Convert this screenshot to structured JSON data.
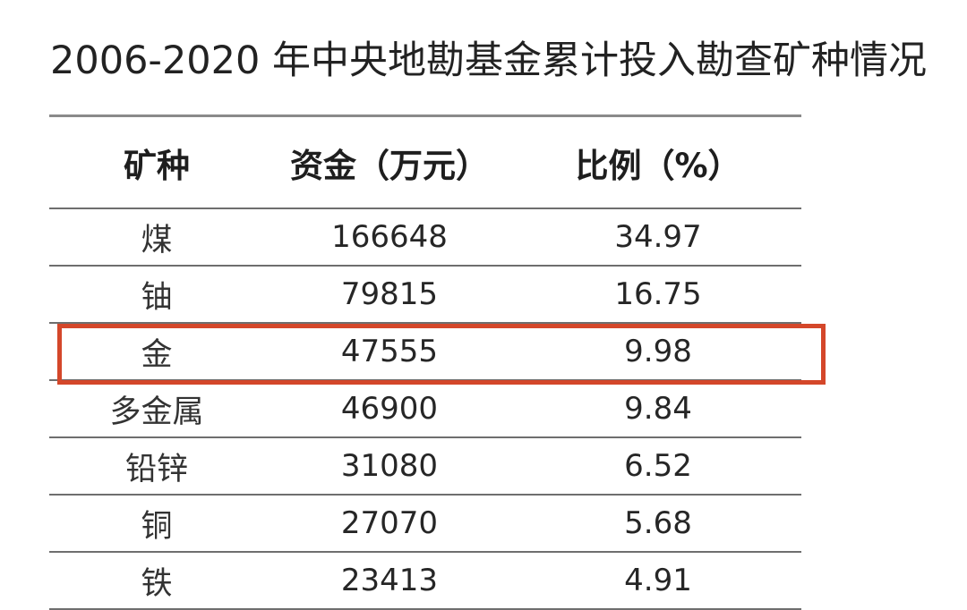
{
  "title": "2006-2020 年中央地勘基金累计投入勘查矿种情况",
  "table": {
    "headers": [
      "矿种",
      "资金（万元）",
      "比例（%）"
    ],
    "rows": [
      [
        "煤",
        "166648",
        "34.97"
      ],
      [
        "铀",
        "79815",
        "16.75"
      ],
      [
        "金",
        "47555",
        "9.98"
      ],
      [
        "多金属",
        "46900",
        "9.84"
      ],
      [
        "铅锌",
        "31080",
        "6.52"
      ],
      [
        "铜",
        "27070",
        "5.68"
      ],
      [
        "铁",
        "23413",
        "4.91"
      ]
    ],
    "highlighted_row": "金"
  },
  "colors": {
    "highlight": "#d4472a",
    "text": "#2a2a2a",
    "rule": "#6e6e6e"
  }
}
